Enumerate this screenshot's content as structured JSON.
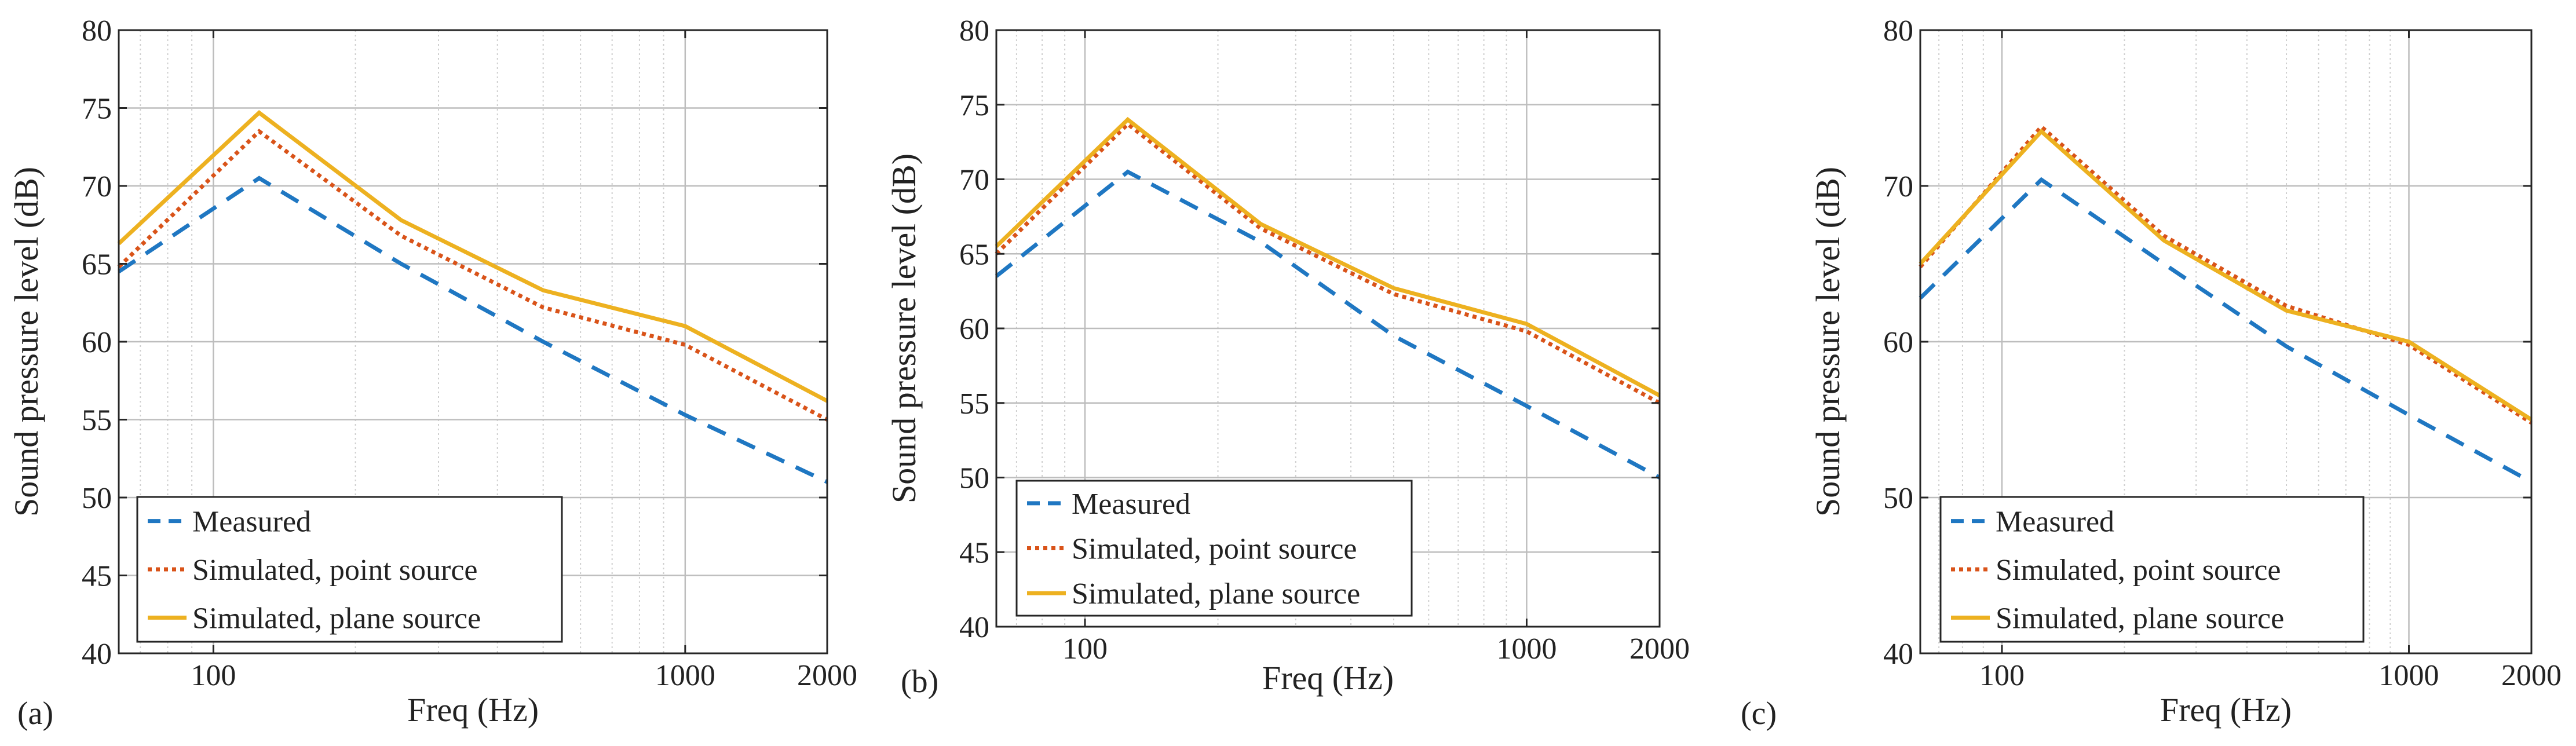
{
  "colors": {
    "measured": "#1F77C2",
    "point_source": "#D95319",
    "plane_source": "#EDB120",
    "grid": "#CFCFCF",
    "axis": "#262626"
  },
  "chart_data": [
    {
      "type": "line",
      "panel_label": "(a)",
      "xlabel": "Freq (Hz)",
      "ylabel": "Sound pressure level (dB)",
      "xscale": "log",
      "xlim": [
        63,
        2000
      ],
      "ylim": [
        40,
        80
      ],
      "xticks": [
        100,
        1000,
        2000
      ],
      "xtick_labels": [
        "100",
        "1000",
        "2000"
      ],
      "yticks": [
        40,
        45,
        50,
        55,
        60,
        65,
        70,
        75,
        80
      ],
      "ytick_labels": [
        "40",
        "45",
        "50",
        "55",
        "60",
        "65",
        "70",
        "75",
        "80"
      ],
      "grid": true,
      "legend_position": "bottom-left",
      "x": [
        63,
        125,
        250,
        500,
        1000,
        2000
      ],
      "series": [
        {
          "name": "Measured",
          "style": "dashed",
          "values": [
            64.5,
            70.5,
            65.0,
            60.0,
            55.3,
            51.0
          ]
        },
        {
          "name": "Simulated, point source",
          "style": "dotted",
          "values": [
            64.8,
            73.5,
            66.8,
            62.2,
            59.8,
            55.0
          ]
        },
        {
          "name": "Simulated, plane source",
          "style": "solid",
          "values": [
            66.3,
            74.7,
            67.8,
            63.3,
            61.0,
            56.2
          ]
        }
      ]
    },
    {
      "type": "line",
      "panel_label": "(b)",
      "xlabel": "Freq (Hz)",
      "ylabel": "Sound pressure level (dB)",
      "xscale": "log",
      "xlim": [
        63,
        2000
      ],
      "ylim": [
        40,
        80
      ],
      "xticks": [
        100,
        1000,
        2000
      ],
      "xtick_labels": [
        "100",
        "1000",
        "2000"
      ],
      "yticks": [
        40,
        45,
        50,
        55,
        60,
        65,
        70,
        75,
        80
      ],
      "ytick_labels": [
        "40",
        "45",
        "50",
        "55",
        "60",
        "65",
        "70",
        "75",
        "80"
      ],
      "grid": true,
      "legend_position": "bottom-left",
      "x": [
        63,
        125,
        250,
        500,
        1000,
        2000
      ],
      "series": [
        {
          "name": "Measured",
          "style": "dashed",
          "values": [
            63.5,
            70.5,
            65.8,
            59.5,
            54.8,
            50.0
          ]
        },
        {
          "name": "Simulated, point source",
          "style": "dotted",
          "values": [
            65.0,
            73.7,
            66.7,
            62.3,
            59.8,
            55.0
          ]
        },
        {
          "name": "Simulated, plane source",
          "style": "solid",
          "values": [
            65.5,
            74.0,
            67.0,
            62.7,
            60.3,
            55.5
          ]
        }
      ]
    },
    {
      "type": "line",
      "panel_label": "(c)",
      "xlabel": "Freq (Hz)",
      "ylabel": "Sound pressure level (dB)",
      "xscale": "log",
      "xlim": [
        63,
        2000
      ],
      "ylim": [
        40,
        80
      ],
      "xticks": [
        100,
        1000,
        2000
      ],
      "xtick_labels": [
        "100",
        "1000",
        "2000"
      ],
      "yticks": [
        40,
        50,
        60,
        70,
        80
      ],
      "ytick_labels": [
        "40",
        "50",
        "60",
        "70",
        "80"
      ],
      "grid": true,
      "legend_position": "bottom-left",
      "x": [
        63,
        125,
        250,
        500,
        1000,
        2000
      ],
      "series": [
        {
          "name": "Measured",
          "style": "dashed",
          "values": [
            62.8,
            70.4,
            65.0,
            59.7,
            55.3,
            51.0
          ]
        },
        {
          "name": "Simulated, point source",
          "style": "dotted",
          "values": [
            64.8,
            73.8,
            66.8,
            62.3,
            59.8,
            54.8
          ]
        },
        {
          "name": "Simulated, plane source",
          "style": "solid",
          "values": [
            65.0,
            73.5,
            66.5,
            62.0,
            60.0,
            55.0
          ]
        }
      ]
    }
  ]
}
